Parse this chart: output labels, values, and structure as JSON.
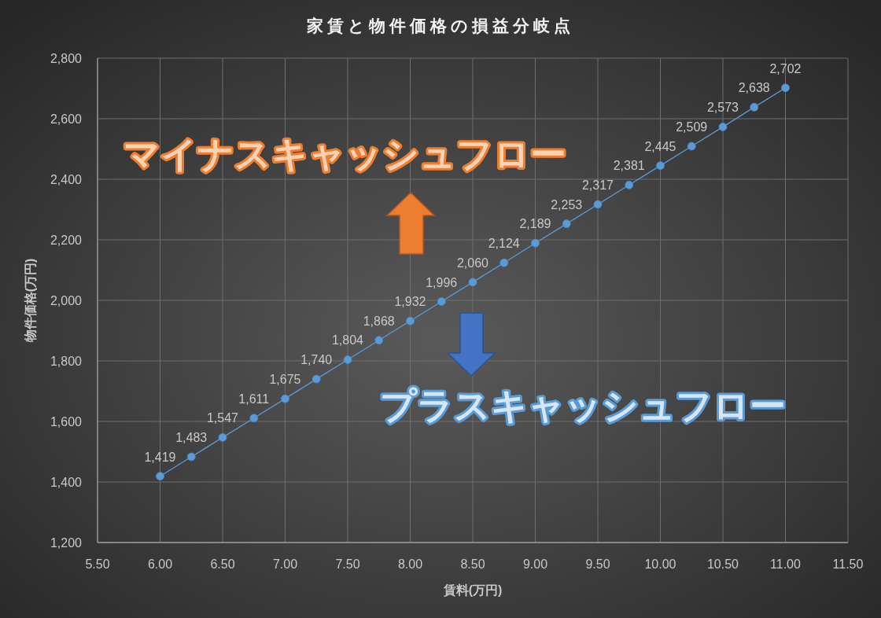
{
  "chart_data": {
    "type": "line",
    "title": "家賃と物件価格の損益分岐点",
    "xlabel": "賃料(万円)",
    "ylabel": "物件価格(万円)",
    "x": [
      6,
      6.25,
      6.5,
      6.75,
      7,
      7.25,
      7.5,
      7.75,
      8,
      8.25,
      8.5,
      8.75,
      9,
      9.25,
      9.5,
      9.75,
      10,
      10.25,
      10.5,
      10.75,
      11
    ],
    "series": [
      {
        "color": "#5b9bd5",
        "values": [
          1419,
          1483,
          1547,
          1611,
          1675,
          1740,
          1804,
          1868,
          1932,
          1996,
          2060,
          2124,
          2189,
          2253,
          2317,
          2381,
          2445,
          2509,
          2573,
          2638,
          2702
        ],
        "value_labels": [
          "1,419",
          "1,483",
          "1,547",
          "1,611",
          "1,675",
          "1,740",
          "1,804",
          "1,868",
          "1,932",
          "1,996",
          "2,060",
          "2,124",
          "2,189",
          "2,253",
          "2,317",
          "2,381",
          "2,445",
          "2,509",
          "2,573",
          "2,638",
          "2,702"
        ]
      }
    ],
    "xlim": [
      5.5,
      11.5
    ],
    "xticks": [
      {
        "value": 5.5,
        "label": "5.50"
      },
      {
        "value": 6,
        "label": "6.00"
      },
      {
        "value": 6.5,
        "label": "6.50"
      },
      {
        "value": 7,
        "label": "7.00"
      },
      {
        "value": 7.5,
        "label": "7.50"
      },
      {
        "value": 8,
        "label": "8.00"
      },
      {
        "value": 8.5,
        "label": "8.50"
      },
      {
        "value": 9,
        "label": "9.00"
      },
      {
        "value": 9.5,
        "label": "9.50"
      },
      {
        "value": 10,
        "label": "10.00"
      },
      {
        "value": 10.5,
        "label": "10.50"
      },
      {
        "value": 11,
        "label": "11.00"
      },
      {
        "value": 11.5,
        "label": "11.50"
      }
    ],
    "ylim": [
      1200,
      2800
    ],
    "yticks": [
      {
        "value": 1200,
        "label": "1,200"
      },
      {
        "value": 1400,
        "label": "1,400"
      },
      {
        "value": 1600,
        "label": "1,600"
      },
      {
        "value": 1800,
        "label": "1,800"
      },
      {
        "value": 2000,
        "label": "2,000"
      },
      {
        "value": 2200,
        "label": "2,200"
      },
      {
        "value": 2400,
        "label": "2,400"
      },
      {
        "value": 2600,
        "label": "2,600"
      },
      {
        "value": 2800,
        "label": "2,800"
      }
    ],
    "grid": true,
    "marker": "circle",
    "line_style": "solid",
    "annotations": [
      "マイナスキャッシュフロー",
      "プラスキャッシュフロー"
    ]
  }
}
